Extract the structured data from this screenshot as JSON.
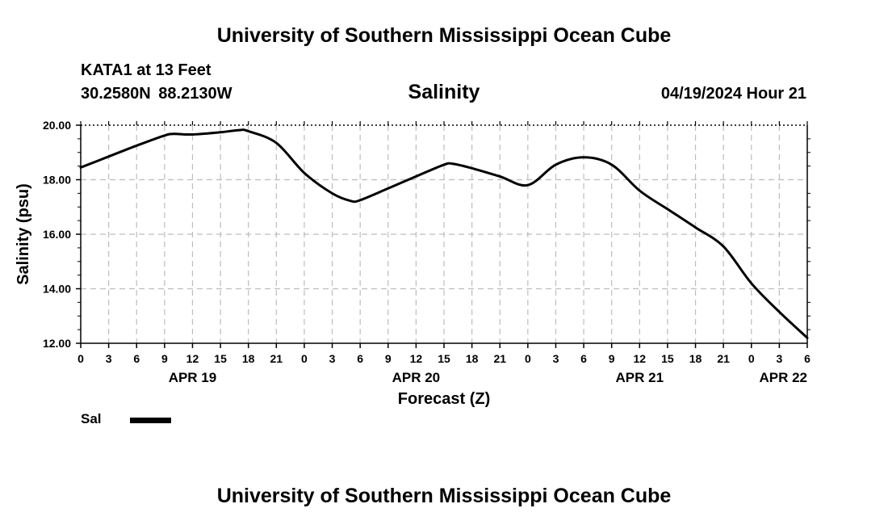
{
  "header": {
    "title": "University of Southern Mississippi Ocean Cube",
    "station": "KATA1 at 13 Feet",
    "coordinates": "30.2580N  88.2130W",
    "datetime": "04/19/2024 Hour 21"
  },
  "footer": {
    "title": "University of Southern Mississippi Ocean Cube"
  },
  "legend": {
    "label": "Sal",
    "color": "#000000"
  },
  "chart_data": {
    "type": "line",
    "title": "Salinity",
    "xlabel": "Forecast (Z)",
    "ylabel": "Salinity (psu)",
    "xlim": [
      0,
      78
    ],
    "ylim": [
      12.0,
      20.0
    ],
    "grid": true,
    "y_ticks": [
      "20.00",
      "18.00",
      "16.00",
      "14.00",
      "12.00"
    ],
    "x_ticks": [
      "0",
      "3",
      "6",
      "9",
      "12",
      "15",
      "18",
      "21",
      "0",
      "3",
      "6",
      "9",
      "12",
      "15",
      "18",
      "21",
      "0",
      "3",
      "6",
      "9",
      "12",
      "15",
      "18",
      "21",
      "0",
      "3",
      "6"
    ],
    "date_labels": [
      {
        "label": "APR 19",
        "hour": 12
      },
      {
        "label": "APR 20",
        "hour": 36
      },
      {
        "label": "APR 21",
        "hour": 60
      },
      {
        "label": "APR 22",
        "hour": 78
      }
    ],
    "series": [
      {
        "name": "Sal",
        "color": "#000000",
        "x": [
          0,
          3,
          6,
          9,
          10,
          12,
          15,
          17,
          18,
          21,
          24,
          27,
          29,
          30,
          33,
          36,
          39,
          40,
          42,
          45,
          48,
          51,
          54,
          57,
          60,
          63,
          66,
          69,
          72,
          75,
          78
        ],
        "y": [
          18.45,
          18.85,
          19.25,
          19.62,
          19.68,
          19.66,
          19.74,
          19.82,
          19.78,
          19.35,
          18.25,
          17.5,
          17.22,
          17.25,
          17.68,
          18.12,
          18.55,
          18.58,
          18.42,
          18.12,
          17.8,
          18.55,
          18.82,
          18.55,
          17.6,
          16.92,
          16.25,
          15.55,
          14.2,
          13.15,
          12.2
        ]
      }
    ]
  }
}
